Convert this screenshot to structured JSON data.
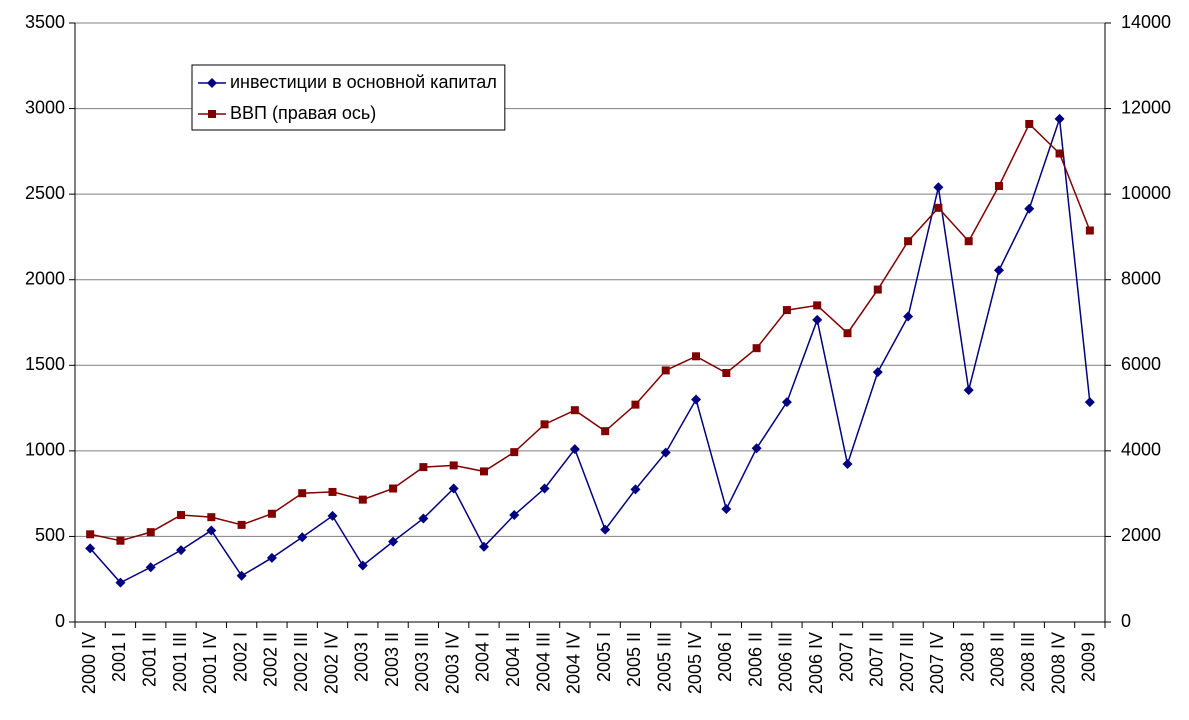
{
  "chart_data": {
    "type": "line",
    "categories": [
      "2000 IV",
      "2001 I",
      "2001 II",
      "2001 III",
      "2001 IV",
      "2002 I",
      "2002 II",
      "2002 III",
      "2002 IV",
      "2003 I",
      "2003 II",
      "2003 III",
      "2003 IV",
      "2004 I",
      "2004 II",
      "2004 III",
      "2004 IV",
      "2005 I",
      "2005 II",
      "2005 III",
      "2005 IV",
      "2006 I",
      "2006 II",
      "2006 III",
      "2006 IV",
      "2007 I",
      "2007 II",
      "2007 III",
      "2007 IV",
      "2008 I",
      "2008 II",
      "2008 III",
      "2008 IV",
      "2009 I"
    ],
    "series": [
      {
        "name": "инвестиции в основной капитал",
        "color": "#000080",
        "marker": "diamond",
        "values": [
          430,
          230,
          320,
          420,
          535,
          270,
          375,
          495,
          620,
          330,
          470,
          605,
          780,
          440,
          625,
          780,
          1010,
          540,
          775,
          990,
          1300,
          660,
          1015,
          1285,
          1765,
          923,
          1460,
          1785,
          2540,
          1355,
          2055,
          2415,
          2940,
          1285
        ]
      },
      {
        "name": "ВВП (правая ось)",
        "color": "#800000",
        "marker": "square",
        "axis": "y2",
        "values": [
          2050,
          1900,
          2100,
          2500,
          2450,
          2270,
          2530,
          3010,
          3040,
          2860,
          3120,
          3620,
          3660,
          3520,
          3970,
          4620,
          4950,
          4460,
          5080,
          5880,
          6210,
          5820,
          6400,
          7290,
          7400,
          6750,
          7770,
          8900,
          9680,
          8900,
          10190,
          11640,
          10950,
          9150
        ]
      }
    ],
    "ylim": [
      0,
      3500
    ],
    "yticks": [
      0,
      500,
      1000,
      1500,
      2000,
      2500,
      3000,
      3500
    ],
    "y2lim": [
      0,
      14000
    ],
    "y2ticks": [
      0,
      2000,
      4000,
      6000,
      8000,
      10000,
      12000,
      14000
    ],
    "grid": true,
    "legend": "upper left"
  }
}
